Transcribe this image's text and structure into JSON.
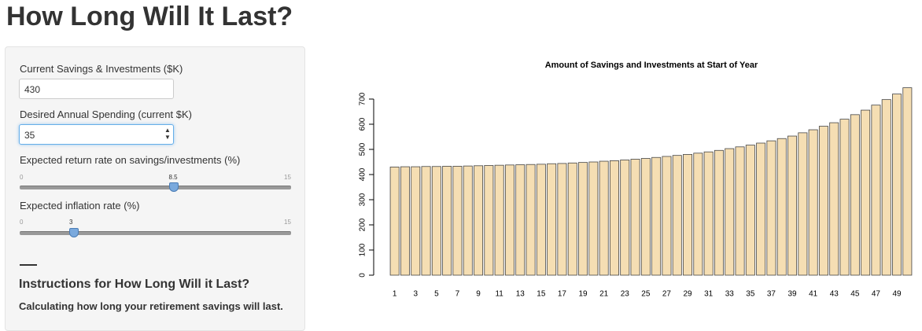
{
  "header": {
    "title": "How Long Will It Last?"
  },
  "sidebar": {
    "savings": {
      "label": "Current Savings & Investments ($K)",
      "value": 430
    },
    "spending": {
      "label": "Desired Annual Spending (current $K)",
      "value": 35
    },
    "return_rate": {
      "label": "Expected return rate on savings/investments (%)",
      "min": 0,
      "max": 15,
      "value": 8.5
    },
    "inflation": {
      "label": "Expected inflation rate (%)",
      "min": 0,
      "max": 15,
      "value": 3
    },
    "instructions_title": "Instructions for How Long Will it Last?",
    "instructions_text": "Calculating how long your retirement savings will last."
  },
  "chart_data": {
    "type": "bar",
    "title": "Amount of Savings and Investments at Start of Year",
    "categories": [
      1,
      null,
      3,
      null,
      5,
      null,
      7,
      null,
      9,
      null,
      11,
      null,
      13,
      null,
      15,
      null,
      17,
      null,
      19,
      null,
      21,
      null,
      23,
      null,
      25,
      null,
      27,
      null,
      29,
      null,
      31,
      null,
      33,
      null,
      35,
      null,
      37,
      null,
      39,
      null,
      41,
      null,
      43,
      null,
      45,
      null,
      47,
      null,
      49,
      null
    ],
    "values": [
      430,
      431,
      431,
      432,
      432,
      433,
      433,
      434,
      435,
      436,
      437,
      438,
      439,
      440,
      441,
      443,
      444,
      446,
      448,
      450,
      453,
      455,
      458,
      461,
      464,
      468,
      472,
      476,
      480,
      485,
      490,
      496,
      503,
      510,
      517,
      525,
      534,
      543,
      553,
      566,
      578,
      592,
      606,
      620,
      638,
      656,
      676,
      698,
      720,
      745
    ],
    "color": "#f5deb3",
    "ylim": [
      0,
      750
    ],
    "yticks": [
      0,
      100,
      200,
      300,
      400,
      500,
      600,
      700
    ]
  }
}
